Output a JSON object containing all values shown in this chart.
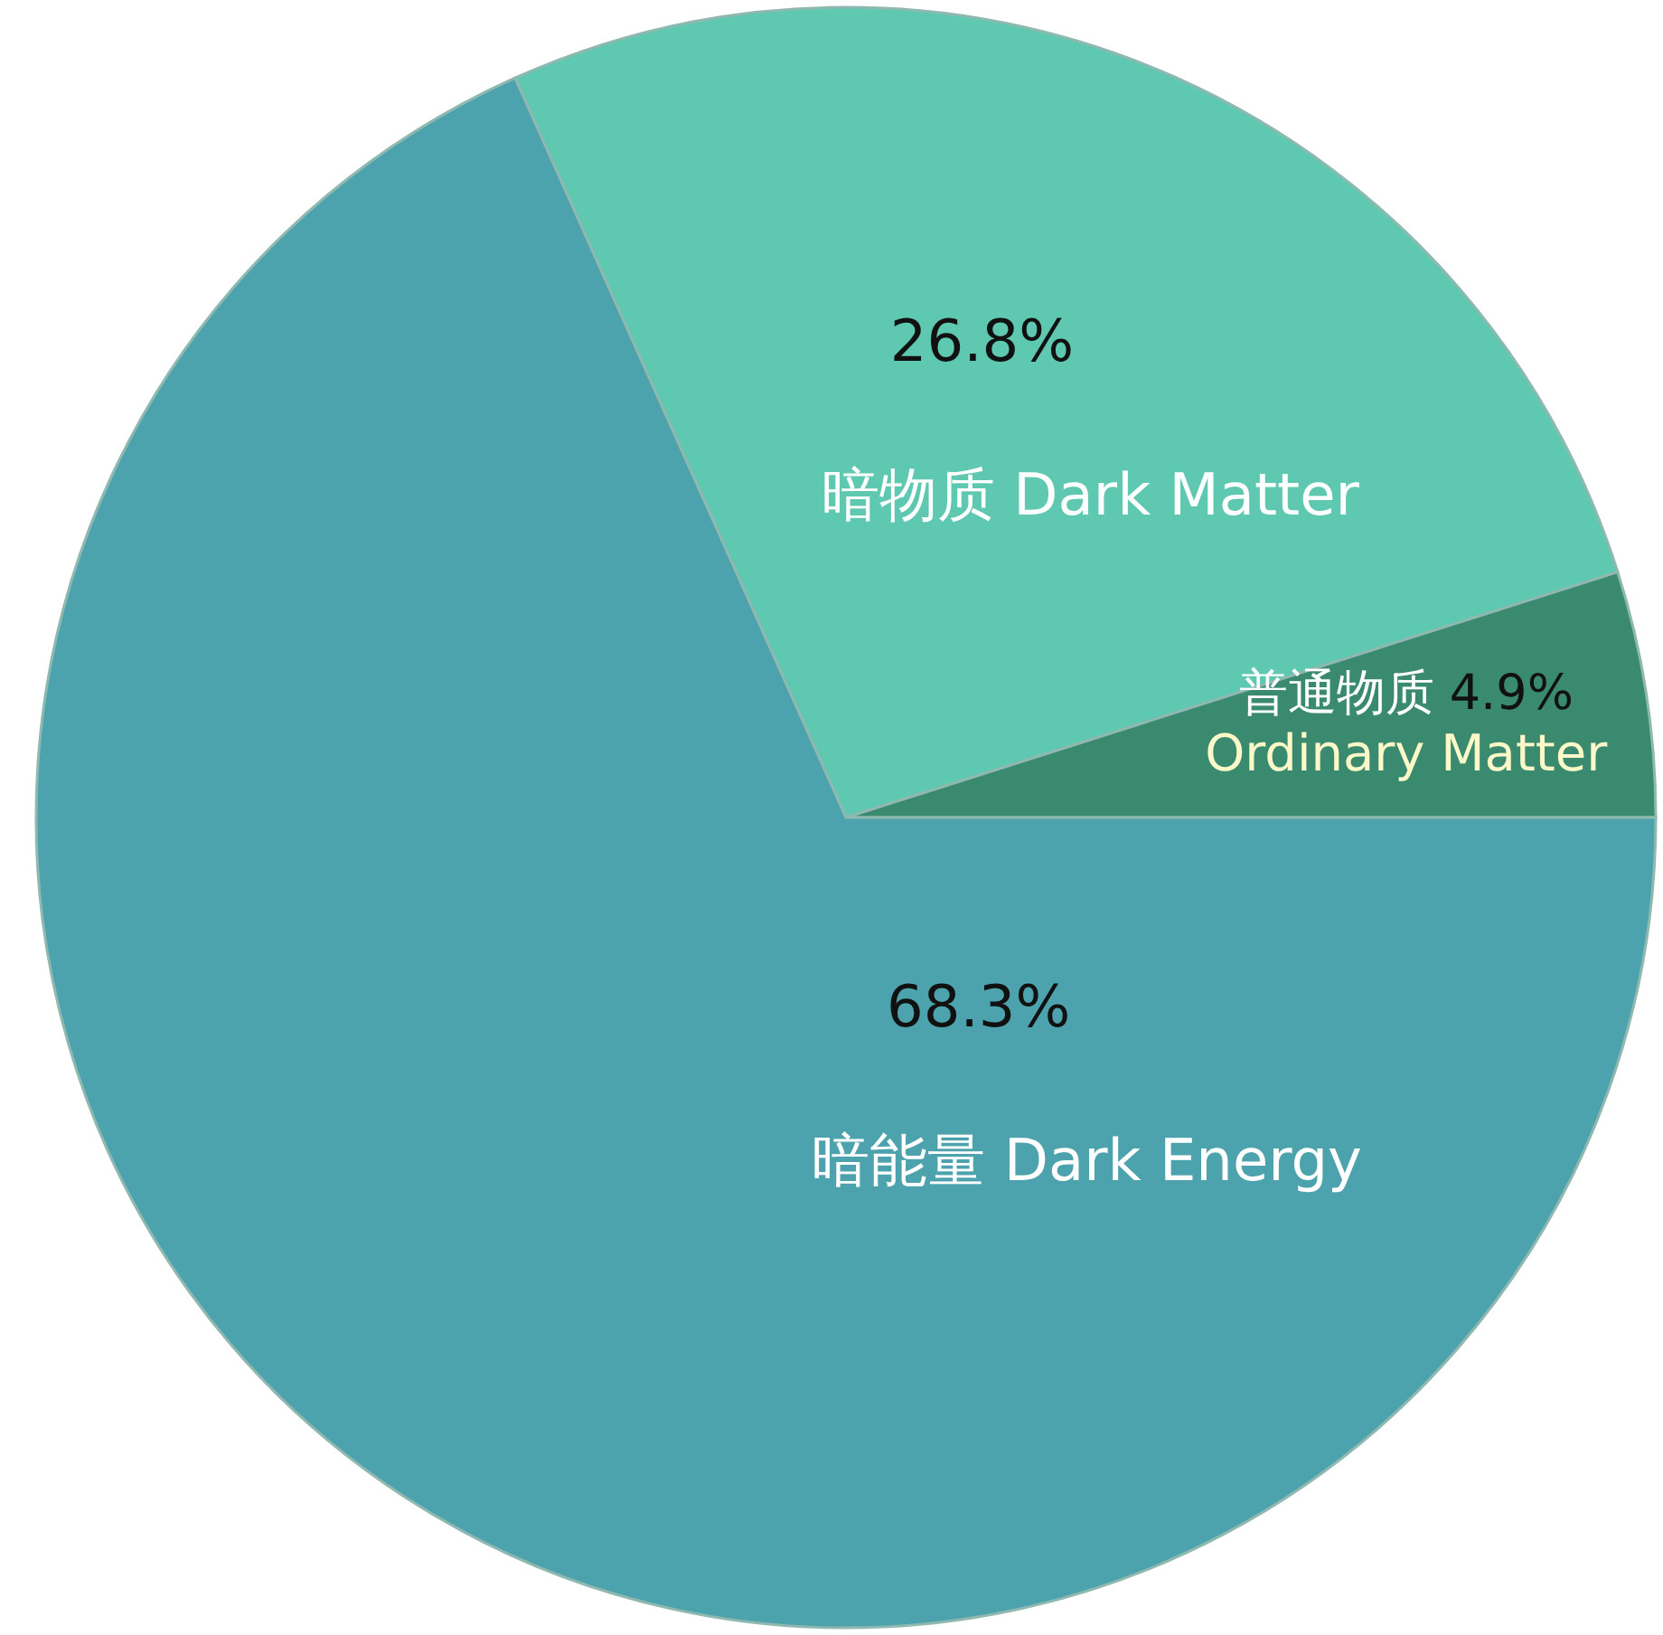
{
  "chart_data": {
    "type": "pie",
    "categories": [
      "暗物质 Dark Matter",
      "普通物质 Ordinary Matter",
      "暗能量 Dark Energy"
    ],
    "values": [
      26.8,
      4.9,
      68.3
    ],
    "colors": [
      "#5ec8b0",
      "#3a8a70",
      "#4da3ad"
    ],
    "value_labels": [
      "26.8%",
      "4.9%",
      "68.3%"
    ]
  }
}
